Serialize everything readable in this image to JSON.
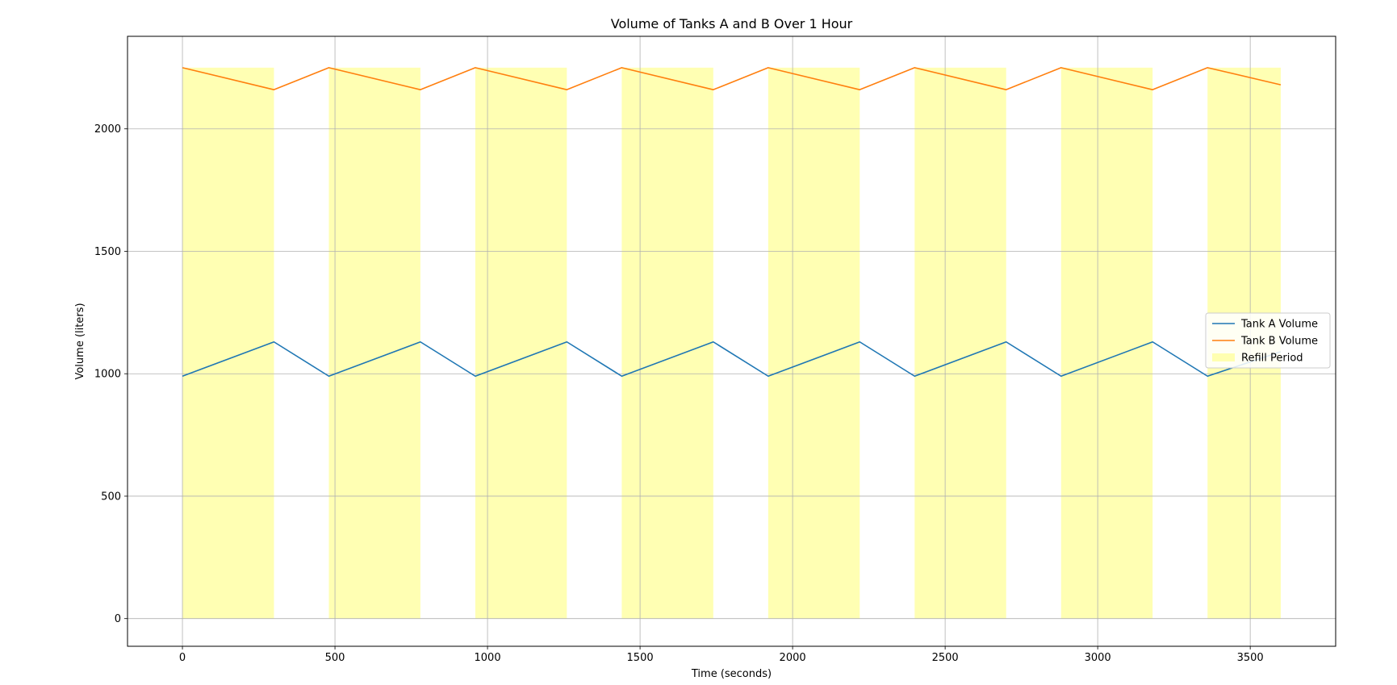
{
  "chart_data": {
    "type": "line",
    "title": "Volume of Tanks A and B Over 1 Hour",
    "xlabel": "Time (seconds)",
    "ylabel": "Volume (liters)",
    "xlim": [
      -180,
      3780
    ],
    "ylim": [
      -113,
      2378
    ],
    "xticks": [
      0,
      500,
      1000,
      1500,
      2000,
      2500,
      3000,
      3500
    ],
    "yticks": [
      0,
      500,
      1000,
      1500,
      2000
    ],
    "grid": true,
    "legend_position": "center-right",
    "series": [
      {
        "name": "Tank A Volume",
        "color": "#1f77b4",
        "x": [
          0,
          300,
          480,
          780,
          960,
          1260,
          1440,
          1740,
          1920,
          2220,
          2400,
          2700,
          2880,
          3180,
          3360,
          3600
        ],
        "y": [
          990,
          1130,
          990,
          1130,
          990,
          1130,
          990,
          1130,
          990,
          1130,
          990,
          1130,
          990,
          1130,
          990,
          1090
        ]
      },
      {
        "name": "Tank B Volume",
        "color": "#ff7f0e",
        "x": [
          0,
          300,
          480,
          780,
          960,
          1260,
          1440,
          1740,
          1920,
          2220,
          2400,
          2700,
          2880,
          3180,
          3360,
          3600
        ],
        "y": [
          2250,
          2160,
          2250,
          2160,
          2250,
          2160,
          2250,
          2160,
          2250,
          2160,
          2250,
          2160,
          2250,
          2160,
          2250,
          2180
        ]
      }
    ],
    "refill_period": {
      "name": "Refill Period",
      "color": "#ffff99",
      "y_range": [
        0,
        2250
      ],
      "intervals": [
        [
          0,
          300
        ],
        [
          480,
          780
        ],
        [
          960,
          1260
        ],
        [
          1440,
          1740
        ],
        [
          1920,
          2220
        ],
        [
          2400,
          2700
        ],
        [
          2880,
          3180
        ],
        [
          3360,
          3600
        ]
      ]
    }
  }
}
